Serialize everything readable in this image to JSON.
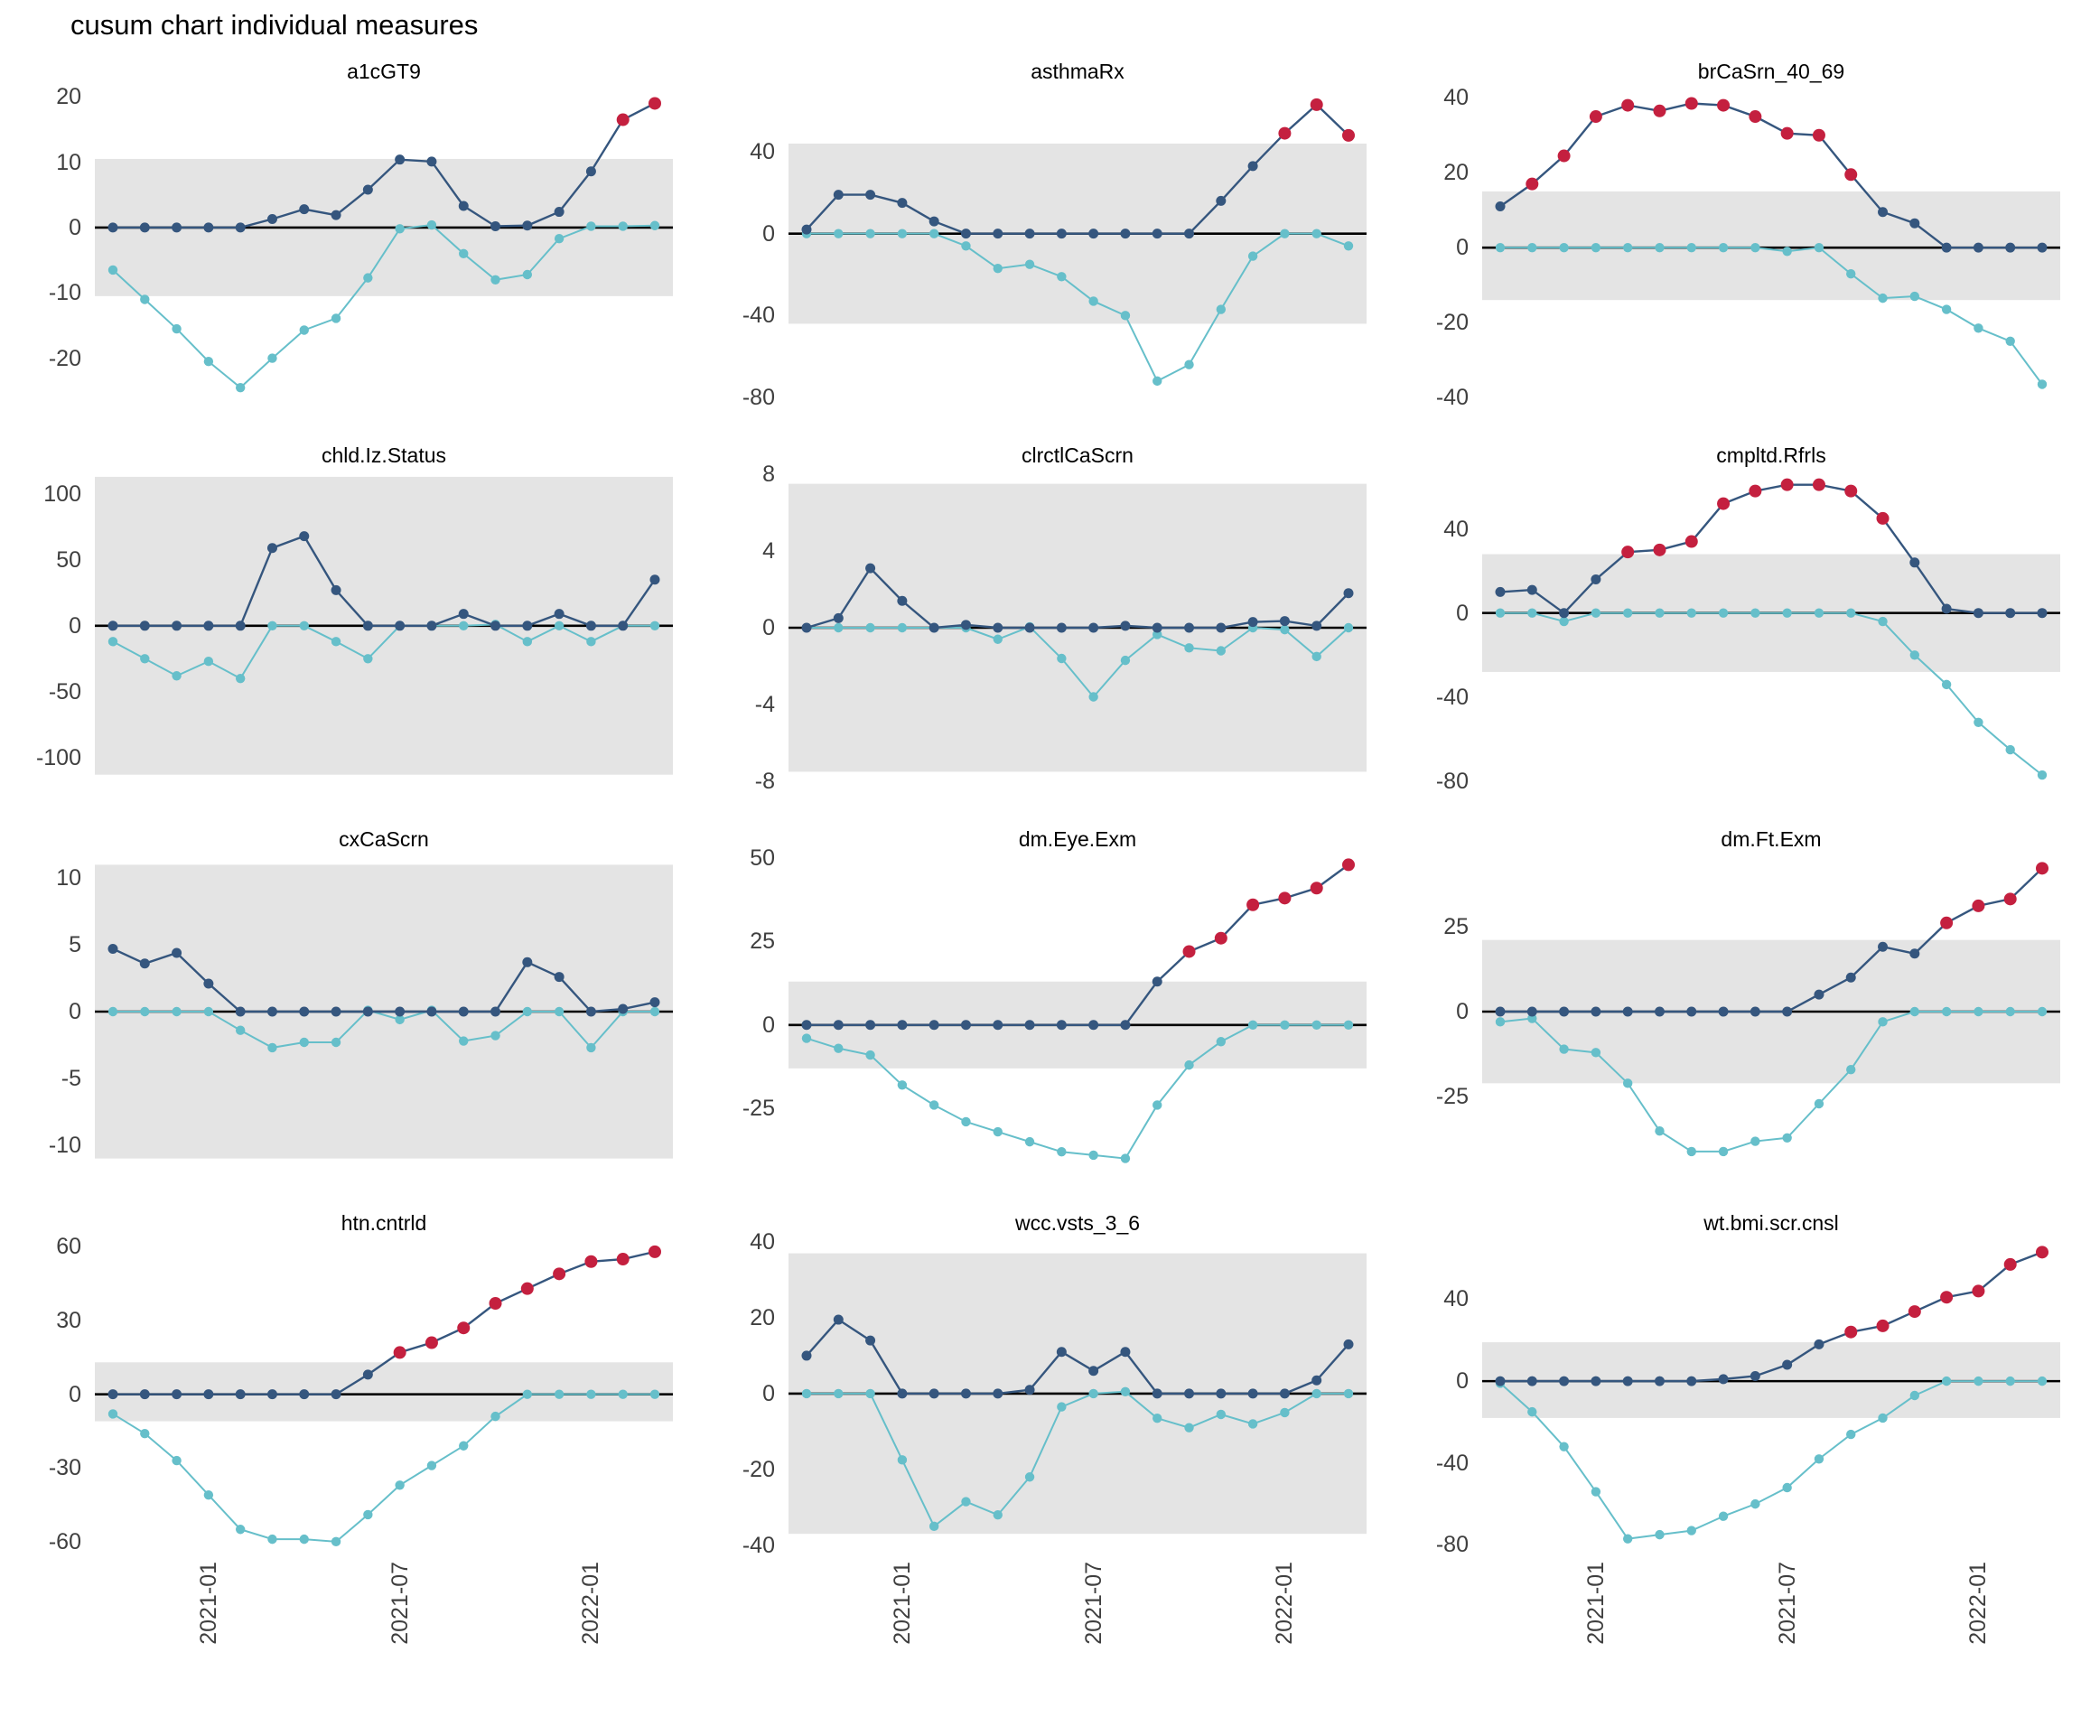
{
  "page_title": "cusum chart  individual measures",
  "colors": {
    "upper_series": "#35567E",
    "lower_series": "#66BFCA",
    "signal_point": "#C4203F",
    "band": "#E4E4E4",
    "center_line": "#000000",
    "axis_text": "#3F3F3F",
    "facet_title_text": "#000000"
  },
  "x_axis": {
    "categories": [
      "2020-10",
      "2020-11",
      "2020-12",
      "2021-01",
      "2021-02",
      "2021-03",
      "2021-04",
      "2021-05",
      "2021-06",
      "2021-07",
      "2021-08",
      "2021-09",
      "2021-10",
      "2021-11",
      "2021-12",
      "2022-01",
      "2022-02",
      "2022-03"
    ],
    "tick_indices": [
      3,
      9,
      15
    ],
    "tick_labels": [
      "2021-01",
      "2021-07",
      "2022-01"
    ]
  },
  "chart_data": [
    {
      "type": "line",
      "title": "a1cGT9",
      "y_ticks": [
        20,
        10,
        0,
        -10,
        -20
      ],
      "ylim": [
        -26,
        21
      ],
      "band": [
        -10.5,
        10.5
      ],
      "series": [
        {
          "name": "upper cusum",
          "values": [
            0,
            0,
            0,
            0,
            0,
            1.3,
            2.8,
            1.9,
            5.8,
            10.4,
            10.1,
            3.3,
            0.2,
            0.3,
            2.4,
            8.6,
            16.5,
            19
          ],
          "signal_indices": [
            16,
            17
          ]
        },
        {
          "name": "lower cusum",
          "values": [
            -6.5,
            -11,
            -15.5,
            -20.5,
            -24.5,
            -20,
            -15.7,
            -13.9,
            -7.7,
            -0.2,
            0.4,
            -4,
            -8,
            -7.2,
            -1.7,
            0.2,
            0.2,
            0.3
          ]
        }
      ]
    },
    {
      "type": "line",
      "title": "asthmaRx",
      "y_ticks": [
        40,
        0,
        -40,
        -80
      ],
      "ylim": [
        -80,
        70
      ],
      "band": [
        -44,
        44
      ],
      "series": [
        {
          "name": "upper cusum",
          "values": [
            2,
            19,
            19,
            15,
            6,
            0,
            0,
            0,
            0,
            0,
            0,
            0,
            0,
            16,
            33,
            49,
            63,
            48
          ],
          "signal_indices": [
            15,
            16,
            17
          ]
        },
        {
          "name": "lower cusum",
          "values": [
            0,
            0,
            0,
            0,
            0,
            -6,
            -17,
            -15,
            -21,
            -33,
            -40,
            -72,
            -64,
            -37,
            -11,
            0,
            0,
            -6
          ]
        }
      ]
    },
    {
      "type": "line",
      "title": "brCaSrn_40_69",
      "y_ticks": [
        40,
        20,
        0,
        -20,
        -40
      ],
      "ylim": [
        -40,
        42
      ],
      "band": [
        -14,
        15
      ],
      "series": [
        {
          "name": "upper cusum",
          "values": [
            11,
            17,
            24.5,
            35,
            38,
            36.5,
            38.5,
            38,
            35,
            30.5,
            30,
            19.5,
            9.5,
            6.5,
            0,
            0,
            0,
            0
          ],
          "signal_indices": [
            1,
            2,
            3,
            4,
            5,
            6,
            7,
            8,
            9,
            10,
            11
          ]
        },
        {
          "name": "lower cusum",
          "values": [
            0,
            0,
            0,
            0,
            0,
            0,
            0,
            0,
            0,
            -1,
            0,
            -7,
            -13.5,
            -13,
            -16.5,
            -21.5,
            -25,
            -36.5
          ]
        }
      ]
    },
    {
      "type": "line",
      "title": "chld.Iz.Status",
      "y_ticks": [
        100,
        50,
        0,
        -50,
        -100
      ],
      "ylim": [
        -118,
        115
      ],
      "band": [
        -113,
        113
      ],
      "series": [
        {
          "name": "upper cusum",
          "values": [
            0,
            0,
            0,
            0,
            0,
            59,
            68,
            27,
            0,
            0,
            0,
            9,
            0,
            0,
            9,
            0,
            0,
            35
          ],
          "signal_indices": []
        },
        {
          "name": "lower cusum",
          "values": [
            -12,
            -25,
            -38,
            -27,
            -40,
            0,
            0,
            -12,
            -25,
            0,
            0,
            0,
            1,
            -12,
            0,
            -12,
            0,
            0
          ]
        }
      ]
    },
    {
      "type": "line",
      "title": "clrctlCaScrn",
      "y_ticks": [
        8,
        4,
        0,
        -4,
        -8
      ],
      "ylim": [
        -8,
        8
      ],
      "band": [
        -7.5,
        7.5
      ],
      "series": [
        {
          "name": "upper cusum",
          "values": [
            0,
            0.5,
            3.1,
            1.4,
            0,
            0.15,
            0,
            0,
            0,
            0,
            0.1,
            0,
            0,
            0,
            0.3,
            0.35,
            0.1,
            1.8
          ],
          "signal_indices": []
        },
        {
          "name": "lower cusum",
          "values": [
            0,
            0,
            0,
            0,
            0,
            0,
            -0.6,
            0.05,
            -1.6,
            -3.6,
            -1.7,
            -0.35,
            -1.05,
            -1.2,
            0,
            -0.1,
            -1.5,
            0
          ]
        }
      ]
    },
    {
      "type": "line",
      "title": "cmpltd.Rfrls",
      "y_ticks": [
        40,
        0,
        -40,
        -80
      ],
      "ylim": [
        -80,
        66
      ],
      "band": [
        -28,
        28
      ],
      "series": [
        {
          "name": "upper cusum",
          "values": [
            10,
            11,
            0,
            16,
            29,
            30,
            34,
            52,
            58,
            61,
            61,
            58,
            45,
            24,
            2,
            0,
            0,
            0
          ],
          "signal_indices": [
            4,
            5,
            6,
            7,
            8,
            9,
            10,
            11,
            12
          ]
        },
        {
          "name": "lower cusum",
          "values": [
            0,
            0,
            -4,
            0,
            0,
            0,
            0,
            0,
            0,
            0,
            0,
            0,
            -4,
            -20,
            -34,
            -52,
            -65,
            -77
          ]
        }
      ]
    },
    {
      "type": "line",
      "title": "cxCaScrn",
      "y_ticks": [
        10,
        5,
        0,
        -5,
        -10
      ],
      "ylim": [
        -11.5,
        11.5
      ],
      "band": [
        -11,
        11
      ],
      "series": [
        {
          "name": "upper cusum",
          "values": [
            4.7,
            3.6,
            4.4,
            2.1,
            0,
            0,
            0,
            0,
            0,
            0,
            0,
            0,
            0,
            3.7,
            2.6,
            0,
            0.2,
            0.7
          ],
          "signal_indices": []
        },
        {
          "name": "lower cusum",
          "values": [
            0,
            0,
            0,
            0,
            -1.4,
            -2.7,
            -2.3,
            -2.3,
            0.1,
            -0.6,
            0.1,
            -2.2,
            -1.8,
            0,
            0,
            -2.7,
            0,
            0
          ]
        }
      ]
    },
    {
      "type": "line",
      "title": "dm.Eye.Exm",
      "y_ticks": [
        50,
        25,
        0,
        -25
      ],
      "ylim": [
        -42,
        50
      ],
      "band": [
        -13,
        13
      ],
      "series": [
        {
          "name": "upper cusum",
          "values": [
            0,
            0,
            0,
            0,
            0,
            0,
            0,
            0,
            0,
            0,
            0,
            13,
            22,
            26,
            36,
            38,
            41,
            48
          ],
          "signal_indices": [
            12,
            13,
            14,
            15,
            16,
            17
          ]
        },
        {
          "name": "lower cusum",
          "values": [
            -4,
            -7,
            -9,
            -18,
            -24,
            -29,
            -32,
            -35,
            -38,
            -39,
            -40,
            -24,
            -12,
            -5,
            0,
            0,
            0,
            0
          ]
        }
      ]
    },
    {
      "type": "line",
      "title": "dm.Ft.Exm",
      "y_ticks": [
        25,
        0,
        -25
      ],
      "ylim": [
        -45,
        45
      ],
      "band": [
        -21,
        21
      ],
      "series": [
        {
          "name": "upper cusum",
          "values": [
            0,
            0,
            0,
            0,
            0,
            0,
            0,
            0,
            0,
            0,
            5,
            10,
            19,
            17,
            26,
            31,
            33,
            42
          ],
          "signal_indices": [
            14,
            15,
            16,
            17
          ]
        },
        {
          "name": "lower cusum",
          "values": [
            -3,
            -2,
            -11,
            -12,
            -21,
            -35,
            -41,
            -41,
            -38,
            -37,
            -27,
            -17,
            -3,
            0,
            0,
            0,
            0,
            0
          ]
        }
      ]
    },
    {
      "type": "line",
      "title": "htn.cntrld",
      "y_ticks": [
        60,
        30,
        0,
        -30,
        -60
      ],
      "ylim": [
        -63,
        62
      ],
      "band": [
        -11,
        13
      ],
      "series": [
        {
          "name": "upper cusum",
          "values": [
            0,
            0,
            0,
            0,
            0,
            0,
            0,
            0,
            8,
            17,
            21,
            27,
            37,
            43,
            49,
            54,
            55,
            58
          ],
          "signal_indices": [
            9,
            10,
            11,
            12,
            13,
            14,
            15,
            16,
            17
          ]
        },
        {
          "name": "lower cusum",
          "values": [
            -8,
            -16,
            -27,
            -41,
            -55,
            -59,
            -59,
            -60,
            -49,
            -37,
            -29,
            -21,
            -9,
            0,
            0,
            0,
            0,
            0
          ]
        }
      ]
    },
    {
      "type": "line",
      "title": "wcc.vsts_3_6",
      "y_ticks": [
        40,
        20,
        0,
        -20,
        -40
      ],
      "ylim": [
        -41,
        40
      ],
      "band": [
        -37,
        37
      ],
      "series": [
        {
          "name": "upper cusum",
          "values": [
            10,
            19.5,
            14,
            0,
            0,
            0,
            0,
            1,
            11,
            6,
            11,
            0,
            0,
            0,
            0,
            0,
            3.5,
            13
          ],
          "signal_indices": []
        },
        {
          "name": "lower cusum",
          "values": [
            0,
            0,
            0,
            -17.5,
            -35,
            -28.5,
            -32,
            -22,
            -3.5,
            0,
            0.5,
            -6.5,
            -9,
            -5.5,
            -8,
            -5,
            0,
            0
          ]
        }
      ]
    },
    {
      "type": "line",
      "title": "wt.bmi.scr.cnsl",
      "y_ticks": [
        40,
        0,
        -40,
        -80
      ],
      "ylim": [
        -82,
        68
      ],
      "band": [
        -18,
        19
      ],
      "series": [
        {
          "name": "upper cusum",
          "values": [
            0,
            0,
            0,
            0,
            0,
            0,
            0,
            1,
            2.5,
            8,
            18,
            24,
            27,
            34,
            41,
            44,
            57,
            63
          ],
          "signal_indices": [
            11,
            12,
            13,
            14,
            15,
            16,
            17
          ]
        },
        {
          "name": "lower cusum",
          "values": [
            -1,
            -15,
            -32,
            -54,
            -77,
            -75,
            -73,
            -66,
            -60,
            -52,
            -38,
            -26,
            -18,
            -7,
            0,
            0,
            0,
            0
          ]
        }
      ]
    }
  ]
}
